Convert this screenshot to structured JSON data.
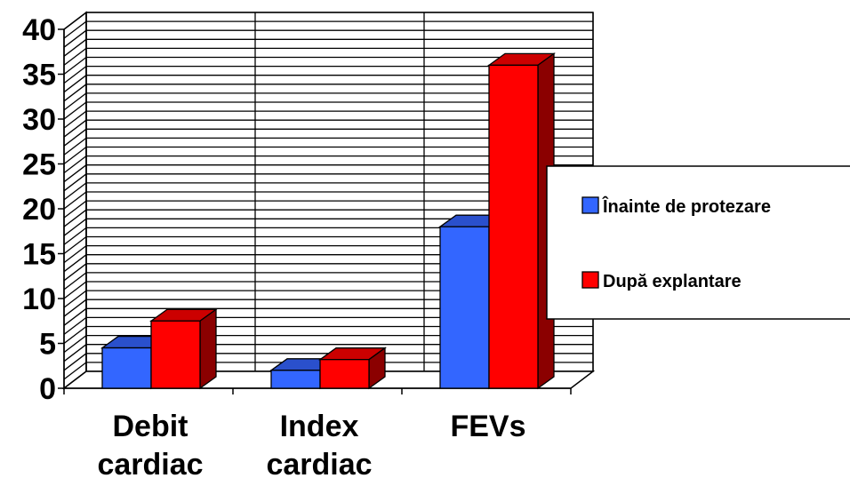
{
  "chart_data": {
    "type": "bar",
    "categories": [
      [
        "Debit",
        "cardiac"
      ],
      [
        "Index",
        "cardiac"
      ],
      [
        "FEVs"
      ]
    ],
    "series": [
      {
        "name": "Înainte de protezare",
        "values": [
          4.5,
          2,
          18
        ],
        "color": "#3366ff",
        "side": "#1f3fa8",
        "top": "#2a50cc"
      },
      {
        "name": "După explantare",
        "values": [
          7.5,
          3.2,
          36
        ],
        "color": "#ff0000",
        "side": "#8b0000",
        "top": "#cc0000"
      }
    ],
    "ylim": [
      0,
      40
    ],
    "yticks": [
      0,
      5,
      10,
      15,
      20,
      25,
      30,
      35,
      40
    ],
    "grid": true,
    "grid_step": 1,
    "legend_position": "right",
    "xlabel": "",
    "ylabel": "",
    "title": ""
  }
}
